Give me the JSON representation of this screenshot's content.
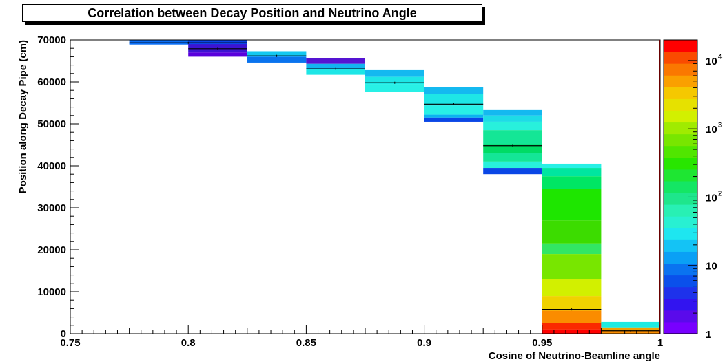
{
  "chart_data": {
    "type": "heatmap",
    "title": "Correlation between Decay Position and Neutrino Angle",
    "xlabel": "Cosine of Neutrino-Beamline angle",
    "ylabel": "Position along Decay Pipe (cm)",
    "xlim": [
      0.75,
      1.0
    ],
    "ylim": [
      0,
      70000
    ],
    "x_ticks": [
      "0.75",
      "0.8",
      "0.85",
      "0.9",
      "0.95",
      "1"
    ],
    "y_ticks": [
      "0",
      "10000",
      "20000",
      "30000",
      "40000",
      "50000",
      "60000",
      "70000"
    ],
    "color_scale": "log",
    "colorbar": {
      "min": 1,
      "max": 20000,
      "labels": [
        "1",
        "10",
        "10",
        "10",
        "10"
      ],
      "exponents": [
        "",
        "",
        "2",
        "3",
        "4"
      ]
    },
    "cells": [
      {
        "x0": 0.775,
        "x1": 0.825,
        "y0": 69000,
        "y1": 70000,
        "color": "#0a6ef5"
      },
      {
        "x0": 0.775,
        "x1": 0.825,
        "y0": 68900,
        "y1": 69200,
        "color": "#0a6ef5"
      },
      {
        "x0": 0.8,
        "x1": 0.825,
        "y0": 69000,
        "y1": 70000,
        "color": "#0a46e6"
      },
      {
        "x0": 0.8,
        "x1": 0.825,
        "y0": 67000,
        "y1": 69000,
        "color": "#3c14d2"
      },
      {
        "x0": 0.8,
        "x1": 0.825,
        "y0": 66000,
        "y1": 67000,
        "color": "#5a00dc"
      },
      {
        "x0": 0.825,
        "x1": 0.85,
        "y0": 66000,
        "y1": 67300,
        "color": "#14c8f0"
      },
      {
        "x0": 0.825,
        "x1": 0.85,
        "y0": 64600,
        "y1": 66000,
        "color": "#0a73ee"
      },
      {
        "x0": 0.85,
        "x1": 0.875,
        "y0": 64300,
        "y1": 65600,
        "color": "#5514d2"
      },
      {
        "x0": 0.85,
        "x1": 0.875,
        "y0": 63000,
        "y1": 64300,
        "color": "#12b4f0"
      },
      {
        "x0": 0.85,
        "x1": 0.875,
        "y0": 61700,
        "y1": 63000,
        "color": "#1ee6e6"
      },
      {
        "x0": 0.875,
        "x1": 0.9,
        "y0": 61200,
        "y1": 62800,
        "color": "#14b9f0"
      },
      {
        "x0": 0.875,
        "x1": 0.9,
        "y0": 59500,
        "y1": 61200,
        "color": "#1ee6e6"
      },
      {
        "x0": 0.875,
        "x1": 0.9,
        "y0": 57600,
        "y1": 59500,
        "color": "#28f0e6"
      },
      {
        "x0": 0.9,
        "x1": 0.925,
        "y0": 57200,
        "y1": 58700,
        "color": "#14b9f0"
      },
      {
        "x0": 0.9,
        "x1": 0.925,
        "y0": 54300,
        "y1": 57200,
        "color": "#1ee6e6"
      },
      {
        "x0": 0.9,
        "x1": 0.925,
        "y0": 52200,
        "y1": 54300,
        "color": "#28f0e6"
      },
      {
        "x0": 0.9,
        "x1": 0.925,
        "y0": 51500,
        "y1": 52200,
        "color": "#0ab4f0"
      },
      {
        "x0": 0.9,
        "x1": 0.925,
        "y0": 50500,
        "y1": 51500,
        "color": "#0a46e6"
      },
      {
        "x0": 0.925,
        "x1": 0.95,
        "y0": 52000,
        "y1": 53300,
        "color": "#14b9f0"
      },
      {
        "x0": 0.925,
        "x1": 0.95,
        "y0": 50500,
        "y1": 52000,
        "color": "#1edce6"
      },
      {
        "x0": 0.925,
        "x1": 0.95,
        "y0": 48500,
        "y1": 50500,
        "color": "#28f0dc"
      },
      {
        "x0": 0.925,
        "x1": 0.95,
        "y0": 45000,
        "y1": 48500,
        "color": "#14e696"
      },
      {
        "x0": 0.925,
        "x1": 0.95,
        "y0": 43000,
        "y1": 45000,
        "color": "#00dc64"
      },
      {
        "x0": 0.925,
        "x1": 0.95,
        "y0": 41000,
        "y1": 43000,
        "color": "#14e696"
      },
      {
        "x0": 0.925,
        "x1": 0.95,
        "y0": 39500,
        "y1": 41000,
        "color": "#28f0dc"
      },
      {
        "x0": 0.925,
        "x1": 0.95,
        "y0": 38000,
        "y1": 39500,
        "color": "#0a46e6"
      },
      {
        "x0": 0.95,
        "x1": 0.975,
        "y0": 39500,
        "y1": 40500,
        "color": "#28f0e6"
      },
      {
        "x0": 0.95,
        "x1": 0.975,
        "y0": 37500,
        "y1": 39500,
        "color": "#00e6a0"
      },
      {
        "x0": 0.95,
        "x1": 0.975,
        "y0": 34500,
        "y1": 37500,
        "color": "#00e664"
      },
      {
        "x0": 0.95,
        "x1": 0.975,
        "y0": 27000,
        "y1": 34500,
        "color": "#1ee600"
      },
      {
        "x0": 0.95,
        "x1": 0.975,
        "y0": 21500,
        "y1": 27000,
        "color": "#3cdc00"
      },
      {
        "x0": 0.95,
        "x1": 0.975,
        "y0": 19000,
        "y1": 21500,
        "color": "#32e664"
      },
      {
        "x0": 0.95,
        "x1": 0.975,
        "y0": 13000,
        "y1": 19000,
        "color": "#78e600"
      },
      {
        "x0": 0.95,
        "x1": 0.975,
        "y0": 9000,
        "y1": 13000,
        "color": "#d2f000"
      },
      {
        "x0": 0.95,
        "x1": 0.975,
        "y0": 5500,
        "y1": 9000,
        "color": "#f0d200"
      },
      {
        "x0": 0.95,
        "x1": 0.975,
        "y0": 2500,
        "y1": 5500,
        "color": "#fa8c00"
      },
      {
        "x0": 0.95,
        "x1": 0.975,
        "y0": 1000,
        "y1": 2500,
        "color": "#fa2800"
      },
      {
        "x0": 0.95,
        "x1": 0.975,
        "y0": 0,
        "y1": 1000,
        "color": "#ff0000"
      },
      {
        "x0": 0.975,
        "x1": 1.0,
        "y0": 1500,
        "y1": 2800,
        "color": "#1eebe1"
      },
      {
        "x0": 0.975,
        "x1": 1.0,
        "y0": 700,
        "y1": 1500,
        "color": "#f0a000"
      },
      {
        "x0": 0.975,
        "x1": 1.0,
        "y0": 0,
        "y1": 700,
        "color": "#fa8c00"
      }
    ],
    "profile": [
      {
        "x0": 0.775,
        "x1": 0.825,
        "y": 69300
      },
      {
        "x0": 0.8,
        "x1": 0.825,
        "y": 67900
      },
      {
        "x0": 0.825,
        "x1": 0.85,
        "y": 66200
      },
      {
        "x0": 0.85,
        "x1": 0.875,
        "y": 63100
      },
      {
        "x0": 0.875,
        "x1": 0.9,
        "y": 59800
      },
      {
        "x0": 0.9,
        "x1": 0.925,
        "y": 54700
      },
      {
        "x0": 0.925,
        "x1": 0.95,
        "y": 44800
      },
      {
        "x0": 0.95,
        "x1": 0.975,
        "y": 5800
      },
      {
        "x0": 0.975,
        "x1": 1.0,
        "y": 700
      }
    ]
  }
}
